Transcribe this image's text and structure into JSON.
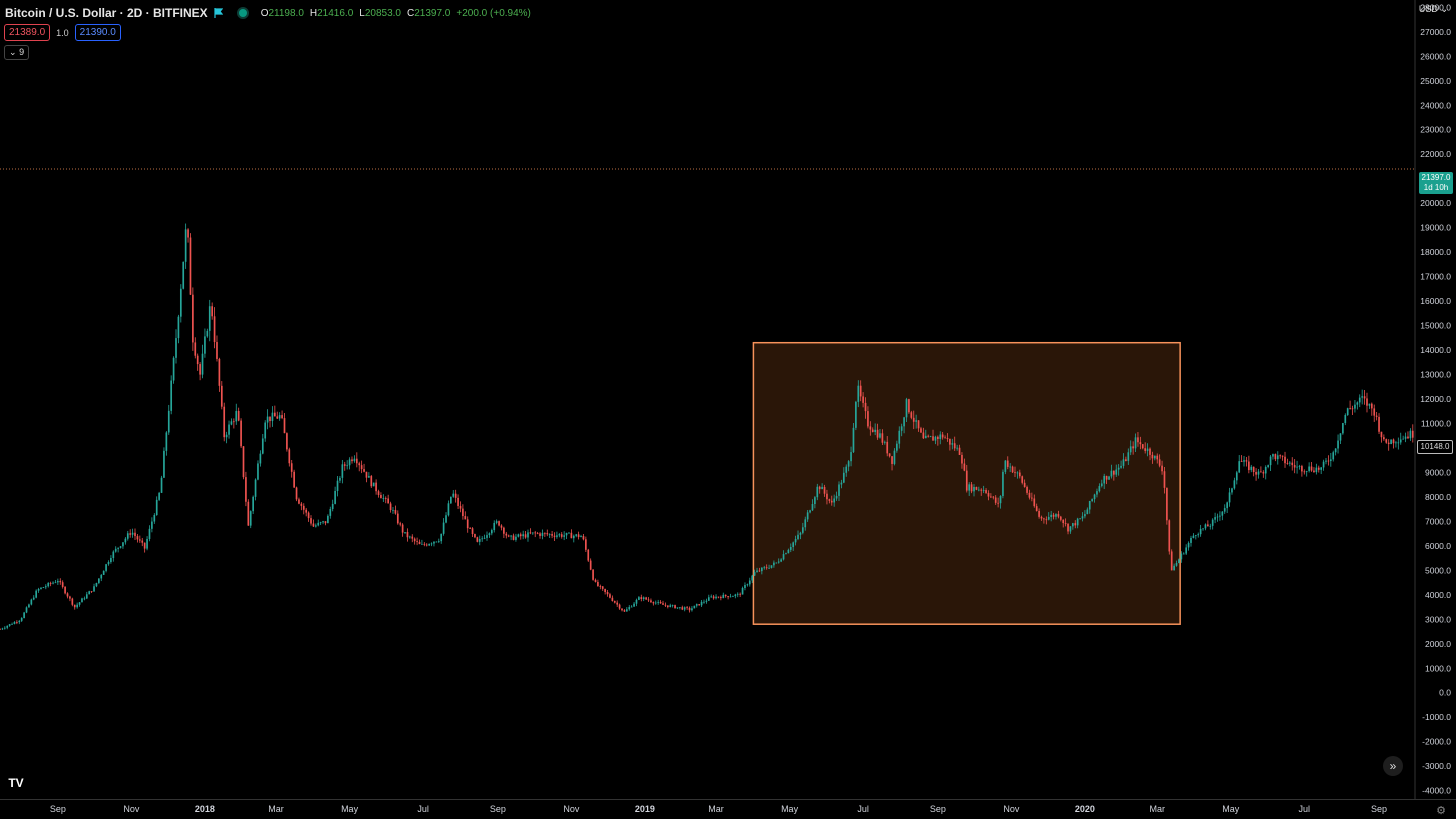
{
  "header": {
    "symbol_title": "Bitcoin / U.S. Dollar · 2D · BITFINEX",
    "ohlc": {
      "o_label": "O",
      "o_value": "21198.0",
      "h_label": "H",
      "h_value": "21416.0",
      "l_label": "L",
      "l_value": "20853.0",
      "c_label": "C",
      "c_value": "21397.0",
      "change": "+200.0 (+0.94%)"
    },
    "bid": "21389.0",
    "spread": "1.0",
    "ask": "21390.0",
    "indicators_toggle": "9",
    "currency": "USD"
  },
  "price_tags": {
    "last_price": "21397.0",
    "countdown": "1d 10h",
    "marker_price": "10148.0"
  },
  "icons": {
    "logo": "tradingview-logo",
    "scroll": "double-chevron-right-icon",
    "settings": "gear-icon",
    "flag": "flag-icon"
  },
  "colors": {
    "up": "#26a69a",
    "down": "#ef5350",
    "highlight_border": "#f7925b",
    "highlight_fill": "#2a1608",
    "last_price": "#26a69a"
  },
  "chart_data": {
    "type": "candlestick",
    "y_axis_ticks": [
      "28000.0",
      "27000.0",
      "26000.0",
      "25000.0",
      "24000.0",
      "23000.0",
      "22000.0",
      "21000.0",
      "20000.0",
      "19000.0",
      "18000.0",
      "17000.0",
      "16000.0",
      "15000.0",
      "14000.0",
      "13000.0",
      "12000.0",
      "11000.0",
      "10000.0",
      "9000.0",
      "8000.0",
      "7000.0",
      "6000.0",
      "5000.0",
      "4000.0",
      "3000.0",
      "2000.0",
      "1000.0",
      "0.0",
      "-1000.0",
      "-2000.0",
      "-3000.0",
      "-4000.0"
    ],
    "ylim": [
      -4300,
      28300
    ],
    "x_axis_ticks": [
      {
        "label": "Sep",
        "date": "2017-09-01",
        "bold": false
      },
      {
        "label": "Nov",
        "date": "2017-11-01",
        "bold": false
      },
      {
        "label": "2018",
        "date": "2018-01-01",
        "bold": true
      },
      {
        "label": "Mar",
        "date": "2018-03-01",
        "bold": false
      },
      {
        "label": "May",
        "date": "2018-05-01",
        "bold": false
      },
      {
        "label": "Jul",
        "date": "2018-07-01",
        "bold": false
      },
      {
        "label": "Sep",
        "date": "2018-09-01",
        "bold": false
      },
      {
        "label": "Nov",
        "date": "2018-11-01",
        "bold": false
      },
      {
        "label": "2019",
        "date": "2019-01-01",
        "bold": true
      },
      {
        "label": "Mar",
        "date": "2019-03-01",
        "bold": false
      },
      {
        "label": "May",
        "date": "2019-05-01",
        "bold": false
      },
      {
        "label": "Jul",
        "date": "2019-07-01",
        "bold": false
      },
      {
        "label": "Sep",
        "date": "2019-09-01",
        "bold": false
      },
      {
        "label": "Nov",
        "date": "2019-11-01",
        "bold": false
      },
      {
        "label": "2020",
        "date": "2020-01-01",
        "bold": true
      },
      {
        "label": "Mar",
        "date": "2020-03-01",
        "bold": false
      },
      {
        "label": "May",
        "date": "2020-05-01",
        "bold": false
      },
      {
        "label": "Jul",
        "date": "2020-07-01",
        "bold": false
      },
      {
        "label": "Sep",
        "date": "2020-09-01",
        "bold": false
      }
    ],
    "xlim": [
      "2017-07-15",
      "2020-09-30"
    ],
    "last_price_line": 21397.0,
    "highlight_rectangle": {
      "x_start": "2019-04-01",
      "x_end": "2020-03-20",
      "y_low": 2800,
      "y_high": 14300
    },
    "price_path": [
      [
        "2017-07-15",
        2600
      ],
      [
        "2017-08-01",
        3000
      ],
      [
        "2017-08-15",
        4200
      ],
      [
        "2017-09-01",
        4600
      ],
      [
        "2017-09-15",
        3500
      ],
      [
        "2017-10-01",
        4300
      ],
      [
        "2017-10-15",
        5600
      ],
      [
        "2017-11-01",
        6600
      ],
      [
        "2017-11-12",
        5900
      ],
      [
        "2017-11-25",
        8300
      ],
      [
        "2017-12-07",
        14000
      ],
      [
        "2017-12-17",
        19300
      ],
      [
        "2017-12-22",
        14500
      ],
      [
        "2017-12-28",
        13000
      ],
      [
        "2018-01-06",
        16000
      ],
      [
        "2018-01-17",
        10500
      ],
      [
        "2018-01-28",
        11500
      ],
      [
        "2018-02-06",
        6800
      ],
      [
        "2018-02-20",
        11200
      ],
      [
        "2018-03-05",
        11300
      ],
      [
        "2018-03-18",
        8000
      ],
      [
        "2018-04-01",
        6800
      ],
      [
        "2018-04-12",
        7000
      ],
      [
        "2018-04-25",
        9200
      ],
      [
        "2018-05-05",
        9700
      ],
      [
        "2018-05-20",
        8500
      ],
      [
        "2018-06-05",
        7500
      ],
      [
        "2018-06-15",
        6500
      ],
      [
        "2018-06-29",
        6000
      ],
      [
        "2018-07-15",
        6300
      ],
      [
        "2018-07-25",
        8200
      ],
      [
        "2018-08-10",
        6500
      ],
      [
        "2018-08-15",
        6100
      ],
      [
        "2018-09-01",
        7000
      ],
      [
        "2018-09-10",
        6300
      ],
      [
        "2018-10-01",
        6500
      ],
      [
        "2018-11-10",
        6400
      ],
      [
        "2018-11-20",
        4500
      ],
      [
        "2018-12-01",
        4000
      ],
      [
        "2018-12-15",
        3300
      ],
      [
        "2018-12-28",
        3900
      ],
      [
        "2019-01-15",
        3600
      ],
      [
        "2019-02-07",
        3400
      ],
      [
        "2019-02-25",
        3900
      ],
      [
        "2019-03-20",
        4000
      ],
      [
        "2019-04-02",
        4900
      ],
      [
        "2019-04-20",
        5300
      ],
      [
        "2019-05-10",
        6500
      ],
      [
        "2019-05-25",
        8500
      ],
      [
        "2019-06-05",
        7700
      ],
      [
        "2019-06-20",
        9500
      ],
      [
        "2019-06-26",
        12500
      ],
      [
        "2019-07-05",
        11000
      ],
      [
        "2019-07-15",
        10500
      ],
      [
        "2019-07-25",
        9500
      ],
      [
        "2019-08-06",
        11800
      ],
      [
        "2019-08-20",
        10300
      ],
      [
        "2019-09-05",
        10500
      ],
      [
        "2019-09-20",
        9800
      ],
      [
        "2019-09-25",
        8400
      ],
      [
        "2019-10-10",
        8300
      ],
      [
        "2019-10-22",
        7600
      ],
      [
        "2019-10-26",
        9500
      ],
      [
        "2019-11-08",
        8800
      ],
      [
        "2019-11-25",
        7100
      ],
      [
        "2019-12-10",
        7300
      ],
      [
        "2019-12-18",
        6700
      ],
      [
        "2019-12-31",
        7200
      ],
      [
        "2020-01-15",
        8700
      ],
      [
        "2020-02-01",
        9300
      ],
      [
        "2020-02-12",
        10300
      ],
      [
        "2020-02-25",
        9800
      ],
      [
        "2020-03-06",
        9100
      ],
      [
        "2020-03-12",
        5000
      ],
      [
        "2020-03-17",
        5300
      ],
      [
        "2020-04-01",
        6500
      ],
      [
        "2020-04-15",
        6900
      ],
      [
        "2020-04-28",
        7700
      ],
      [
        "2020-05-08",
        9500
      ],
      [
        "2020-05-25",
        8900
      ],
      [
        "2020-06-05",
        9700
      ],
      [
        "2020-06-25",
        9200
      ],
      [
        "2020-07-15",
        9150
      ],
      [
        "2020-07-25",
        9800
      ],
      [
        "2020-08-05",
        11500
      ],
      [
        "2020-08-18",
        12000
      ],
      [
        "2020-08-28",
        11500
      ],
      [
        "2020-09-05",
        10200
      ],
      [
        "2020-09-30",
        10600
      ]
    ]
  }
}
